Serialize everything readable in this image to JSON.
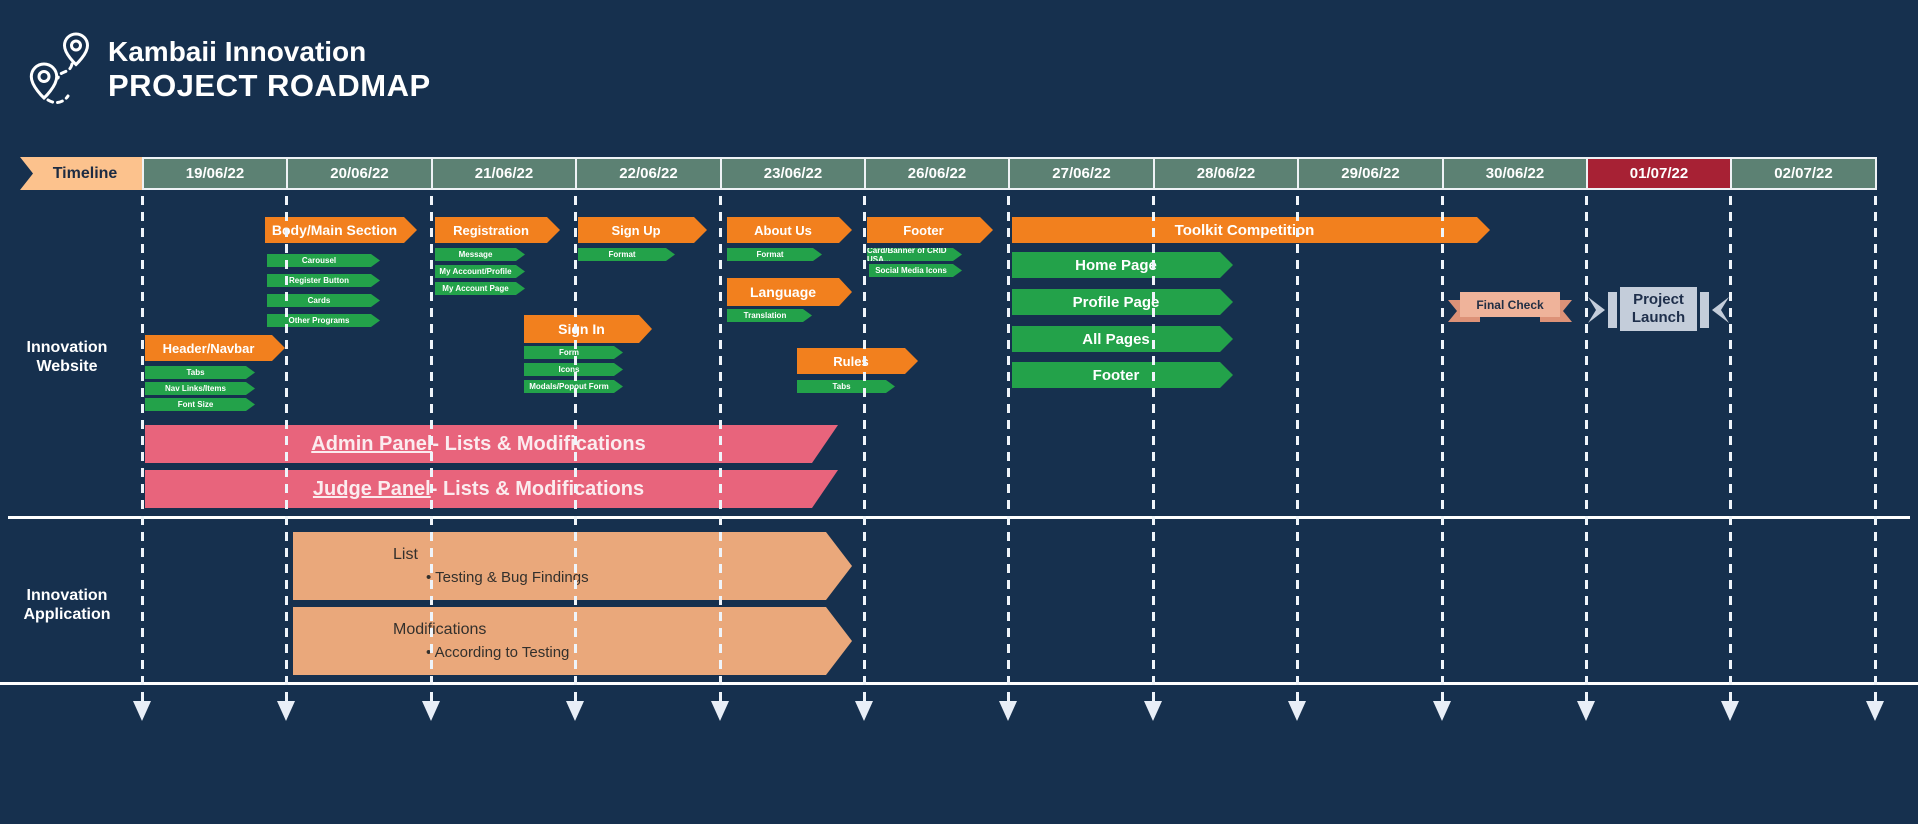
{
  "header": {
    "title_line1": "Kambaii Innovation",
    "title_line2": "PROJECT ROADMAP"
  },
  "timeline": {
    "label": "Timeline",
    "dates": [
      "19/06/22",
      "20/06/22",
      "21/06/22",
      "22/06/22",
      "23/06/22",
      "26/06/22",
      "27/06/22",
      "28/06/22",
      "29/06/22",
      "30/06/22",
      "01/07/22",
      "02/07/22"
    ],
    "highlighted_date": "01/07/22"
  },
  "website": {
    "label_line1": "Innovation",
    "label_line2": "Website",
    "groups": {
      "header_navbar": {
        "label": "Header/Navbar",
        "children": [
          "Tabs",
          "Nav Links/Items",
          "Font Size"
        ]
      },
      "body_main": {
        "label": "Body/Main Section",
        "children": [
          "Carousel",
          "Register Button",
          "Cards",
          "Other Programs"
        ]
      },
      "registration": {
        "label": "Registration",
        "children": [
          "Message",
          "My Account/Profile",
          "My Account Page"
        ]
      },
      "sign_up": {
        "label": "Sign Up",
        "children": [
          "Format"
        ]
      },
      "sign_in": {
        "label": "Sign In",
        "children": [
          "Form",
          "Icons",
          "Modals/Popout Form"
        ]
      },
      "about_us": {
        "label": "About Us",
        "children": [
          "Format"
        ]
      },
      "language": {
        "label": "Language",
        "children": [
          "Translation"
        ]
      },
      "rules": {
        "label": "Rules",
        "children": [
          "Tabs"
        ]
      },
      "footer": {
        "label": "Footer",
        "children": [
          "Card/Banner of CRID USA...",
          "Social Media Icons"
        ]
      },
      "toolkit": {
        "label": "Toolkit Competition",
        "children": [
          "Home Page",
          "Profile Page",
          "All Pages",
          "Footer"
        ]
      }
    },
    "panels": [
      {
        "name": "Admin Panel",
        "suffix": " - Lists & Modifications"
      },
      {
        "name": "Judge Panel",
        "suffix": " - Lists & Modifications"
      }
    ],
    "final_check": "Final Check",
    "project_launch": {
      "line1": "Project",
      "line2": "Launch"
    }
  },
  "application": {
    "label_line1": "Innovation",
    "label_line2": "Application",
    "bars": [
      {
        "title": "List",
        "bullet": "• Testing & Bug Findings"
      },
      {
        "title": "Modifications",
        "bullet": "• According to Testing"
      }
    ]
  },
  "colors": {
    "background": "#16304e",
    "orange": "#f2801e",
    "green": "#23a24a",
    "teal": "#5c8173",
    "red": "#a72134",
    "peach_label": "#fcc28d",
    "pink": "#e8647c",
    "peach_bar": "#eaa87b",
    "salmon": "#efb39a",
    "salmon_dark": "#dd9278",
    "gray_ribbon": "#c4cdda",
    "line": "#e8eef7"
  }
}
